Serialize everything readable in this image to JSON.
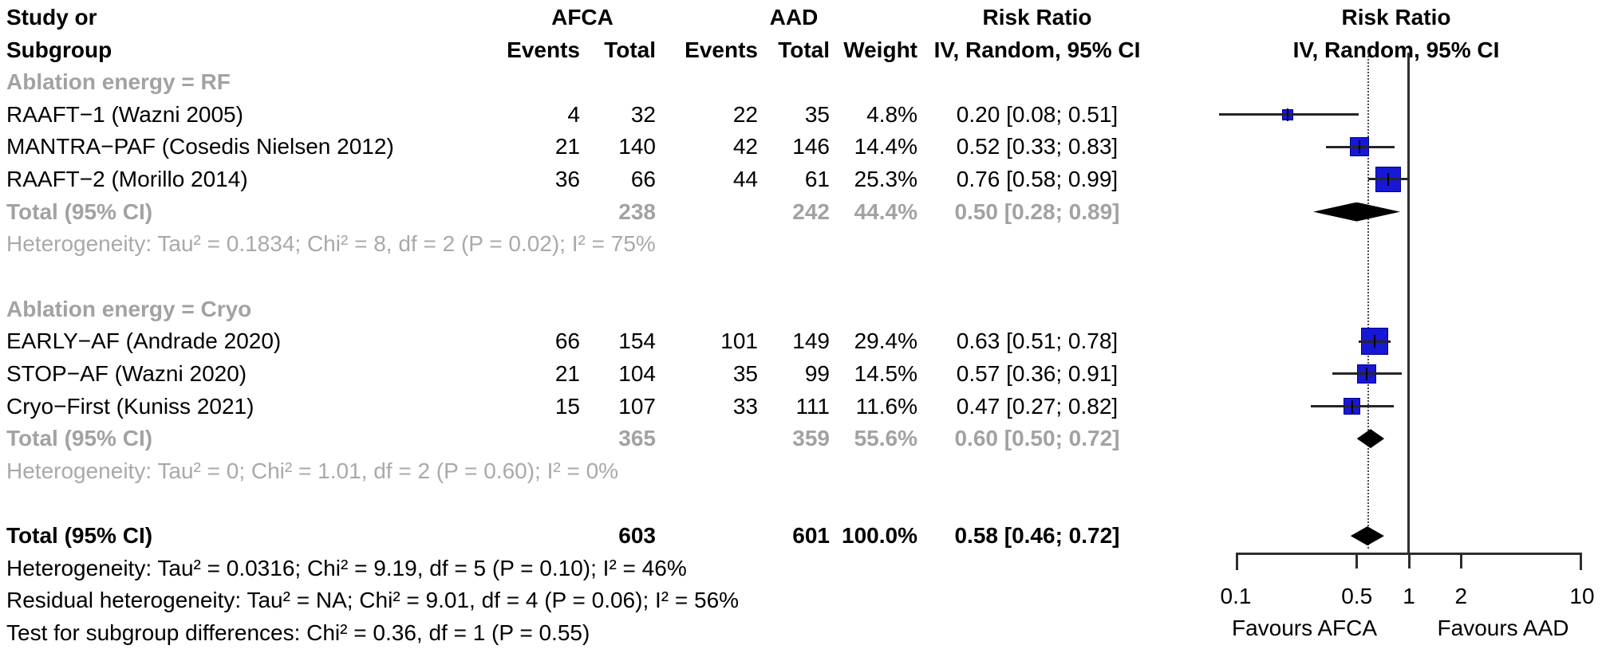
{
  "header": {
    "study_line1": "Study or",
    "study_line2": "Subgroup",
    "afca": "AFCA",
    "aad": "AAD",
    "events": "Events",
    "total": "Total",
    "weight": "Weight",
    "rr_title": "Risk Ratio",
    "rr_sub": "IV, Random, 95% CI"
  },
  "colors": {
    "square": "#1717d6",
    "diamond": "#000000",
    "gray_text": "#a2a2a2",
    "black_text": "#000000"
  },
  "chart_data": {
    "type": "forest",
    "effect_measure": "Risk Ratio",
    "model": "IV, Random, 95% CI",
    "x_scale": "log10",
    "xlim": [
      0.1,
      10
    ],
    "reference_line": 1,
    "overall_effect_line": 0.58,
    "rows": [
      {
        "kind": "group",
        "label": "Ablation energy = RF"
      },
      {
        "kind": "study",
        "label": "RAAFT−1 (Wazni 2005)",
        "e1": "4",
        "t1": "32",
        "e2": "22",
        "t2": "35",
        "weight": "4.8%",
        "ci": "0.20 [0.08; 0.51]",
        "rr": 0.2,
        "lo": 0.08,
        "hi": 0.51,
        "w": 4.8
      },
      {
        "kind": "study",
        "label": "MANTRA−PAF (Cosedis Nielsen 2012)",
        "e1": "21",
        "t1": "140",
        "e2": "42",
        "t2": "146",
        "weight": "14.4%",
        "ci": "0.52 [0.33; 0.83]",
        "rr": 0.52,
        "lo": 0.33,
        "hi": 0.83,
        "w": 14.4
      },
      {
        "kind": "study",
        "label": "RAAFT−2 (Morillo 2014)",
        "e1": "36",
        "t1": "66",
        "e2": "44",
        "t2": "61",
        "weight": "25.3%",
        "ci": "0.76 [0.58; 0.99]",
        "rr": 0.76,
        "lo": 0.58,
        "hi": 0.99,
        "w": 25.3
      },
      {
        "kind": "subtotal",
        "label": "Total (95% CI)",
        "t1": "238",
        "t2": "242",
        "weight": "44.4%",
        "ci": "0.50 [0.28; 0.89]",
        "rr": 0.5,
        "lo": 0.28,
        "hi": 0.89
      },
      {
        "kind": "het",
        "label": "Heterogeneity: Tau² = 0.1834; Chi² = 8, df = 2 (P = 0.02); I² = 75%"
      },
      {
        "kind": "spacer"
      },
      {
        "kind": "group",
        "label": "Ablation energy = Cryo"
      },
      {
        "kind": "study",
        "label": "EARLY−AF (Andrade 2020)",
        "e1": "66",
        "t1": "154",
        "e2": "101",
        "t2": "149",
        "weight": "29.4%",
        "ci": "0.63 [0.51; 0.78]",
        "rr": 0.63,
        "lo": 0.51,
        "hi": 0.78,
        "w": 29.4
      },
      {
        "kind": "study",
        "label": "STOP−AF (Wazni 2020)",
        "e1": "21",
        "t1": "104",
        "e2": "35",
        "t2": "99",
        "weight": "14.5%",
        "ci": "0.57 [0.36; 0.91]",
        "rr": 0.57,
        "lo": 0.36,
        "hi": 0.91,
        "w": 14.5
      },
      {
        "kind": "study",
        "label": "Cryo−First (Kuniss 2021)",
        "e1": "15",
        "t1": "107",
        "e2": "33",
        "t2": "111",
        "weight": "11.6%",
        "ci": "0.47 [0.27; 0.82]",
        "rr": 0.47,
        "lo": 0.27,
        "hi": 0.82,
        "w": 11.6
      },
      {
        "kind": "subtotal",
        "label": "Total (95% CI)",
        "t1": "365",
        "t2": "359",
        "weight": "55.6%",
        "ci": "0.60 [0.50; 0.72]",
        "rr": 0.6,
        "lo": 0.5,
        "hi": 0.72
      },
      {
        "kind": "het",
        "label": "Heterogeneity: Tau² = 0; Chi² = 1.01, df = 2 (P = 0.60); I² = 0%"
      },
      {
        "kind": "spacer"
      },
      {
        "kind": "total",
        "label": "Total (95% CI)",
        "t1": "603",
        "t2": "601",
        "weight": "100.0%",
        "ci": "0.58 [0.46; 0.72]",
        "rr": 0.58,
        "lo": 0.46,
        "hi": 0.72
      },
      {
        "kind": "het_black",
        "label": "Heterogeneity: Tau² = 0.0316; Chi² = 9.19, df = 5 (P = 0.10); I² = 46%"
      },
      {
        "kind": "het_black",
        "label": "Residual heterogeneity: Tau² = NA; Chi² = 9.01, df = 4 (P = 0.06); I² = 56%"
      },
      {
        "kind": "het_black",
        "label": "Test for subgroup differences: Chi² = 0.36, df = 1 (P = 0.55)"
      }
    ],
    "axis": {
      "ticks": [
        0.1,
        0.5,
        1,
        2,
        10
      ],
      "tick_labels": [
        "0.1",
        "0.5",
        "1",
        "2",
        "10"
      ],
      "favours_left": "Favours AFCA",
      "favours_right": "Favours AAD"
    }
  }
}
